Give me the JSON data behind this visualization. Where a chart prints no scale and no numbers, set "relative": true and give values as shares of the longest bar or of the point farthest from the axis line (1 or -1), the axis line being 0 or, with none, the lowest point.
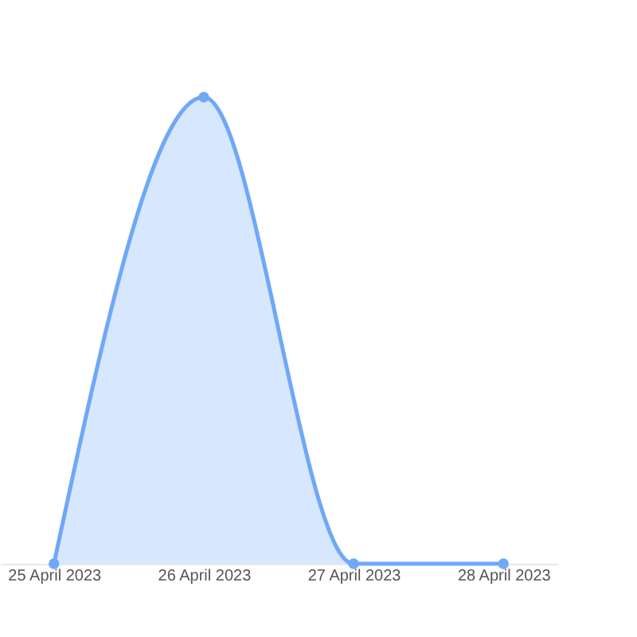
{
  "chart_data": {
    "type": "area",
    "relative": true,
    "categories": [
      "25 April 2023",
      "26 April 2023",
      "27 April 2023",
      "28 April 2023"
    ],
    "series": [
      {
        "color": "#6fa8f7",
        "values": [
          0,
          1,
          0,
          0
        ]
      }
    ],
    "marker": "circle",
    "grid": false
  }
}
